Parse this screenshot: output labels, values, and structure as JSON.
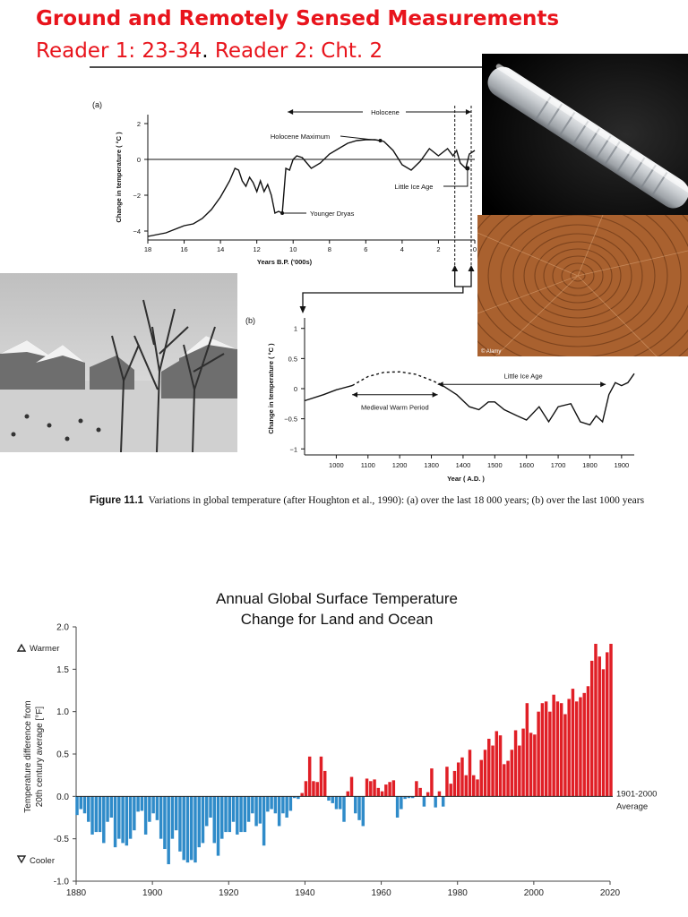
{
  "header": {
    "title": "Ground and Remotely Sensed Measurements",
    "subtitle_a": "Reader 1: 23-34",
    "subtitle_dot": ".",
    "subtitle_b": " Reader 2: Cht. 2"
  },
  "figure_11_1": {
    "caption_label": "Figure 11.1",
    "caption_text": "Variations in global temperature (after Houghton et al., 1990): (a) over the last 18 000 years; (b) over the last 1000 years"
  },
  "chart_data": [
    {
      "type": "line",
      "panel_label": "(a)",
      "xlabel": "Years  B.P. ('000s)",
      "ylabel": "Change in temperature ( °C )",
      "xlim": [
        18,
        0
      ],
      "ylim": [
        -4.5,
        2.5
      ],
      "x_ticks": [
        18,
        16,
        14,
        12,
        10,
        8,
        6,
        4,
        2,
        0
      ],
      "y_ticks": [
        2,
        0,
        -2,
        -4
      ],
      "x": [
        18,
        17.5,
        17,
        16.5,
        16,
        15.5,
        15,
        14.5,
        14,
        13.5,
        13.2,
        13,
        12.8,
        12.6,
        12.4,
        12.2,
        12,
        11.8,
        11.6,
        11.4,
        11.2,
        11,
        10.8,
        10.6,
        10.4,
        10.2,
        10,
        9.8,
        9.5,
        9,
        8.5,
        8,
        7.5,
        7,
        6.5,
        6,
        5.5,
        5.2,
        5,
        4.5,
        4,
        3.5,
        3,
        2.5,
        2,
        1.5,
        1.2,
        1,
        0.8,
        0.5,
        0.3,
        0
      ],
      "y": [
        -4.3,
        -4.2,
        -4.1,
        -3.9,
        -3.7,
        -3.6,
        -3.3,
        -2.8,
        -2.1,
        -1.2,
        -0.5,
        -0.6,
        -1.2,
        -1.5,
        -1.0,
        -1.3,
        -1.8,
        -1.2,
        -1.8,
        -1.4,
        -2.0,
        -3.0,
        -2.9,
        -3.0,
        -0.5,
        -0.6,
        0.0,
        0.2,
        0.1,
        -0.5,
        -0.2,
        0.3,
        0.6,
        0.9,
        1.05,
        1.1,
        1.1,
        1.05,
        1.0,
        0.5,
        -0.3,
        -0.6,
        -0.1,
        0.6,
        0.2,
        0.6,
        0.2,
        0.5,
        -0.2,
        -0.5,
        0.3,
        0.5
      ],
      "annotations": [
        "Holocene",
        "Holocene Maximum",
        "Younger Dryas",
        "Little Ice Age"
      ]
    },
    {
      "type": "line",
      "panel_label": "(b)",
      "xlabel": "Year ( A.D. )",
      "ylabel": "Change in temperature ( °C )",
      "xlim": [
        900,
        1940
      ],
      "ylim": [
        -1.1,
        1.1
      ],
      "x_ticks": [
        1000,
        1100,
        1200,
        1300,
        1400,
        1500,
        1600,
        1700,
        1800,
        1900
      ],
      "y_ticks": [
        1,
        0.5,
        0,
        -0.5,
        -1
      ],
      "solid_start_x": [
        900,
        960,
        1000,
        1050
      ],
      "solid_start_y": [
        -0.2,
        -0.1,
        -0.02,
        0.05
      ],
      "dashed_x": [
        1050,
        1100,
        1150,
        1200,
        1250,
        1300,
        1330
      ],
      "dashed_y": [
        0.05,
        0.2,
        0.27,
        0.28,
        0.24,
        0.14,
        0.07
      ],
      "solid_end_x": [
        1330,
        1380,
        1420,
        1450,
        1480,
        1500,
        1530,
        1570,
        1600,
        1640,
        1670,
        1700,
        1740,
        1770,
        1800,
        1820,
        1840,
        1860,
        1880,
        1900,
        1920,
        1940
      ],
      "solid_end_y": [
        0.07,
        -0.1,
        -0.3,
        -0.35,
        -0.22,
        -0.22,
        -0.35,
        -0.45,
        -0.52,
        -0.3,
        -0.55,
        -0.3,
        -0.25,
        -0.55,
        -0.6,
        -0.45,
        -0.55,
        -0.1,
        0.1,
        0.05,
        0.1,
        0.25
      ],
      "annotations": [
        "Little Ice Age",
        "Medieval Warm Period"
      ]
    },
    {
      "type": "bar",
      "title": "Annual Global Surface Temperature Change for Land and Ocean",
      "title_line1": "Annual Global Surface Temperature",
      "title_line2": "Change for Land and Ocean",
      "ylabel_line1": "Temperature difference from",
      "ylabel_line2": "20th century average [°F]",
      "ylim": [
        -1.0,
        2.0
      ],
      "y_ticks": [
        "2.0",
        "1.5",
        "1.0",
        "0.5",
        "0.0",
        "-0.5",
        "-1.0"
      ],
      "x_ticks": [
        "1880",
        "1900",
        "1920",
        "1940",
        "1960",
        "1980",
        "2000",
        "2020"
      ],
      "warmer_label": "Warmer",
      "cooler_label": "Cooler",
      "baseline_label_line1": "1901-2000",
      "baseline_label_line2": "Average",
      "positive_color": "#e01f26",
      "negative_color": "#2f8bc9",
      "x": [
        1880,
        1881,
        1882,
        1883,
        1884,
        1885,
        1886,
        1887,
        1888,
        1889,
        1890,
        1891,
        1892,
        1893,
        1894,
        1895,
        1896,
        1897,
        1898,
        1899,
        1900,
        1901,
        1902,
        1903,
        1904,
        1905,
        1906,
        1907,
        1908,
        1909,
        1910,
        1911,
        1912,
        1913,
        1914,
        1915,
        1916,
        1917,
        1918,
        1919,
        1920,
        1921,
        1922,
        1923,
        1924,
        1925,
        1926,
        1927,
        1928,
        1929,
        1930,
        1931,
        1932,
        1933,
        1934,
        1935,
        1936,
        1937,
        1938,
        1939,
        1940,
        1941,
        1942,
        1943,
        1944,
        1945,
        1946,
        1947,
        1948,
        1949,
        1950,
        1951,
        1952,
        1953,
        1954,
        1955,
        1956,
        1957,
        1958,
        1959,
        1960,
        1961,
        1962,
        1963,
        1964,
        1965,
        1966,
        1967,
        1968,
        1969,
        1970,
        1971,
        1972,
        1973,
        1974,
        1975,
        1976,
        1977,
        1978,
        1979,
        1980,
        1981,
        1982,
        1983,
        1984,
        1985,
        1986,
        1987,
        1988,
        1989,
        1990,
        1991,
        1992,
        1993,
        1994,
        1995,
        1996,
        1997,
        1998,
        1999,
        2000,
        2001,
        2002,
        2003,
        2004,
        2005,
        2006,
        2007,
        2008,
        2009,
        2010,
        2011,
        2012,
        2013,
        2014,
        2015,
        2016,
        2017,
        2018,
        2019,
        2020
      ],
      "values": [
        -0.22,
        -0.15,
        -0.2,
        -0.3,
        -0.45,
        -0.42,
        -0.42,
        -0.55,
        -0.3,
        -0.25,
        -0.6,
        -0.5,
        -0.55,
        -0.58,
        -0.5,
        -0.4,
        -0.18,
        -0.17,
        -0.45,
        -0.3,
        -0.2,
        -0.28,
        -0.5,
        -0.62,
        -0.8,
        -0.5,
        -0.4,
        -0.65,
        -0.75,
        -0.78,
        -0.75,
        -0.78,
        -0.6,
        -0.55,
        -0.35,
        -0.25,
        -0.55,
        -0.7,
        -0.5,
        -0.42,
        -0.42,
        -0.3,
        -0.45,
        -0.42,
        -0.42,
        -0.3,
        -0.2,
        -0.35,
        -0.32,
        -0.58,
        -0.18,
        -0.15,
        -0.2,
        -0.35,
        -0.2,
        -0.25,
        -0.17,
        -0.02,
        -0.03,
        0.04,
        0.18,
        0.47,
        0.18,
        0.17,
        0.47,
        0.3,
        -0.05,
        -0.08,
        -0.15,
        -0.15,
        -0.3,
        0.06,
        0.23,
        -0.2,
        -0.28,
        -0.35,
        0.21,
        0.18,
        0.2,
        0.1,
        0.06,
        0.14,
        0.17,
        0.19,
        -0.25,
        -0.15,
        -0.03,
        -0.02,
        -0.02,
        0.18,
        0.1,
        -0.12,
        0.05,
        0.33,
        -0.13,
        0.06,
        -0.12,
        0.35,
        0.15,
        0.3,
        0.4,
        0.46,
        0.25,
        0.55,
        0.25,
        0.2,
        0.43,
        0.55,
        0.68,
        0.6,
        0.77,
        0.72,
        0.38,
        0.42,
        0.55,
        0.78,
        0.6,
        0.8,
        1.1,
        0.75,
        0.73,
        1.0,
        1.1,
        1.12,
        1.0,
        1.2,
        1.12,
        1.1,
        0.97,
        1.15,
        1.27,
        1.12,
        1.17,
        1.22,
        1.3,
        1.6,
        1.8,
        1.65,
        1.5,
        1.7,
        1.8
      ]
    }
  ],
  "photos": {
    "ice_core": "ice-core",
    "tree_rings": "tree-rings",
    "tree_rings_credit": "© Alamy",
    "winter_painting": "winter-landscape-painting"
  }
}
